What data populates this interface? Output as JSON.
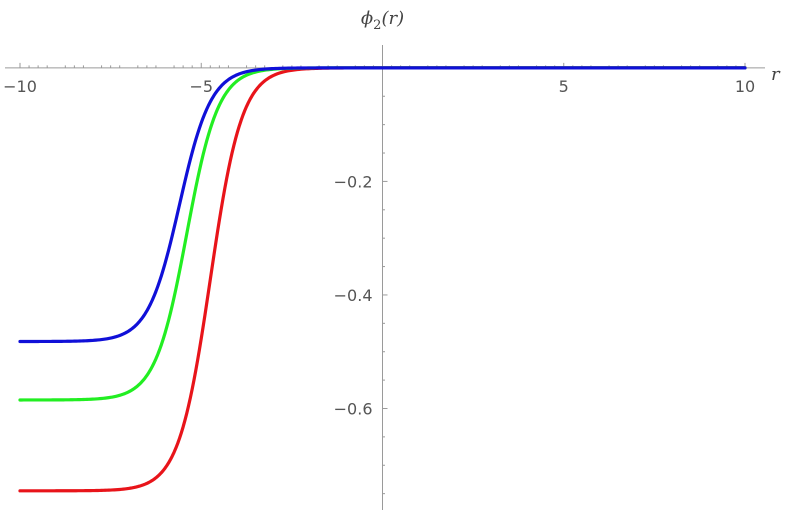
{
  "chart_data": {
    "type": "line",
    "ylabel_parts": {
      "base": "ϕ",
      "sub": "2",
      "arg": "(r)"
    },
    "xlabel": "r",
    "xlim": [
      -10,
      10
    ],
    "ylim": [
      -0.77,
      0.035
    ],
    "x_ticks": [
      -10,
      -5,
      5,
      10
    ],
    "x_tick_labels": [
      "−10",
      "−5",
      "5",
      "10"
    ],
    "y_ticks": [
      -0.2,
      -0.4,
      -0.6
    ],
    "y_tick_labels": [
      "−0.2",
      "−0.4",
      "−0.6"
    ],
    "grid": false,
    "series": [
      {
        "color": "#e8141a",
        "left_value": -0.745,
        "midpoint": -4.75,
        "steepness": 2.3
      },
      {
        "color": "#22ee22",
        "left_value": -0.585,
        "midpoint": -5.4,
        "steepness": 2.3
      },
      {
        "color": "#1010d8",
        "left_value": -0.482,
        "midpoint": -5.6,
        "steepness": 2.3
      }
    ]
  }
}
